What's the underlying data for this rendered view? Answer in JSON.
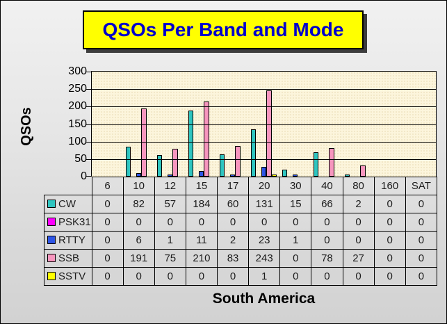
{
  "title": {
    "text": "QSOs Per Band and Mode",
    "bg_color": "#FFFF00",
    "text_color": "#0000CC"
  },
  "y_axis": {
    "label": "QSOs",
    "ticks": [
      300,
      250,
      200,
      150,
      100,
      50,
      0
    ]
  },
  "x_axis": {
    "label": "South America"
  },
  "chart_data": {
    "type": "bar",
    "title": "QSOs Per Band and Mode",
    "xlabel": "South America",
    "ylabel": "QSOs",
    "ylim": [
      0,
      300
    ],
    "ytick_step": 50,
    "grid": true,
    "plot_bg_color": "#FCF5DC",
    "legend_position": "table-left",
    "categories": [
      "6",
      "10",
      "12",
      "15",
      "17",
      "20",
      "30",
      "40",
      "80",
      "160",
      "SAT"
    ],
    "series": [
      {
        "name": "CW",
        "color": "#2FC5C0",
        "values": [
          0,
          82,
          57,
          184,
          60,
          131,
          15,
          66,
          2,
          0,
          0
        ]
      },
      {
        "name": "PSK31",
        "color": "#FF00FF",
        "values": [
          0,
          0,
          0,
          0,
          0,
          0,
          0,
          0,
          0,
          0,
          0
        ]
      },
      {
        "name": "RTTY",
        "color": "#2D55E6",
        "values": [
          0,
          6,
          1,
          11,
          2,
          23,
          1,
          0,
          0,
          0,
          0
        ]
      },
      {
        "name": "SSB",
        "color": "#F796BE",
        "values": [
          0,
          191,
          75,
          210,
          83,
          243,
          0,
          78,
          27,
          0,
          0
        ]
      },
      {
        "name": "SSTV",
        "color": "#FFFF00",
        "values": [
          0,
          0,
          0,
          0,
          0,
          1,
          0,
          0,
          0,
          0,
          0
        ]
      }
    ]
  }
}
